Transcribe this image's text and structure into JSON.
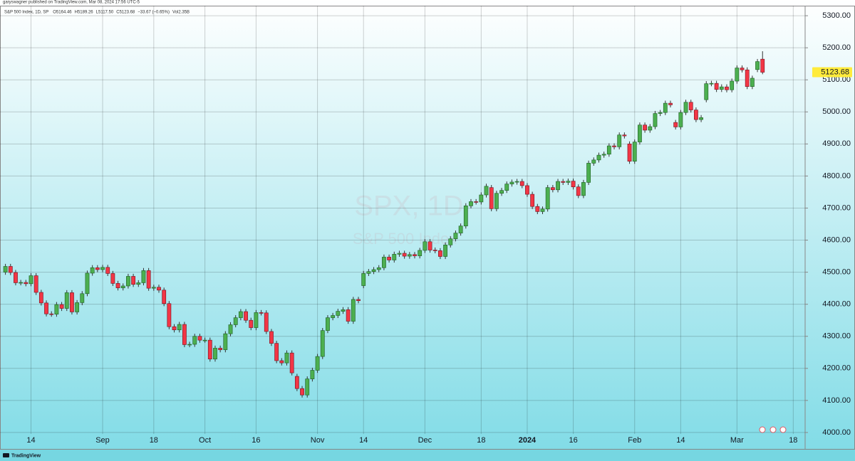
{
  "header": {
    "published": "garyswagner published on TradingView.com, Mar 08, 2024 17:56 UTC-5",
    "symbol": "S&P 500 Index, 1D, SP",
    "ohlc_items": [
      "O5164.46",
      "H5189.26",
      "L5117.50",
      "C5123.68",
      "−33.67 (−0.65%)",
      "Vol2.35B"
    ],
    "brand": "TradingView"
  },
  "chart_data": {
    "type": "candlestick",
    "watermark": "SPX, 1D",
    "watermark_subtitle": "S&P 500 Index",
    "up_color": "#4caf50",
    "down_color": "#f23645",
    "grid": true,
    "ylim": [
      3951,
      5349
    ],
    "yticks": [
      {
        "value": 4000,
        "label": "4000.00"
      },
      {
        "value": 4100,
        "label": "4100.00"
      },
      {
        "value": 4200,
        "label": "4200.00"
      },
      {
        "value": 4300,
        "label": "4300.00"
      },
      {
        "value": 4400,
        "label": "4400.00"
      },
      {
        "value": 4500,
        "label": "4500.00"
      },
      {
        "value": 4600,
        "label": "4600.00"
      },
      {
        "value": 4700,
        "label": "4700.00"
      },
      {
        "value": 4800,
        "label": "4800.00"
      },
      {
        "value": 4900,
        "label": "4900.00"
      },
      {
        "value": 5000,
        "label": "5000.00"
      },
      {
        "value": 5100,
        "label": "5100.00"
      },
      {
        "value": 5200,
        "label": "5200.00"
      },
      {
        "value": 5300,
        "label": "5300.00"
      }
    ],
    "xticks": [
      {
        "value": 5,
        "label": "14"
      },
      {
        "value": 19,
        "label": "Sep"
      },
      {
        "value": 29,
        "label": "18"
      },
      {
        "value": 39,
        "label": "Oct"
      },
      {
        "value": 49,
        "label": "16"
      },
      {
        "value": 61,
        "label": "Nov"
      },
      {
        "value": 70,
        "label": "14"
      },
      {
        "value": 82,
        "label": "Dec"
      },
      {
        "value": 93,
        "label": "18"
      },
      {
        "value": 102,
        "label": "2024"
      },
      {
        "value": 111,
        "label": "16"
      },
      {
        "value": 123,
        "label": "Feb"
      },
      {
        "value": 132,
        "label": "14"
      },
      {
        "value": 143,
        "label": "Mar"
      },
      {
        "value": 154,
        "label": "18"
      }
    ],
    "open": [
      4500,
      4518,
      4499,
      4467,
      4468,
      4464,
      4489,
      4437,
      4404,
      4370,
      4369,
      4399,
      4387,
      4436,
      4376,
      4405,
      4433,
      4497,
      4514,
      4508,
      4515,
      4496,
      4465,
      4451,
      4457,
      4487,
      4462,
      4467,
      4505,
      4450,
      4453,
      4444,
      4402,
      4330,
      4320,
      4337,
      4274,
      4275,
      4300,
      4288,
      4288,
      4229,
      4263,
      4258,
      4308,
      4336,
      4358,
      4377,
      4350,
      4327,
      4374,
      4373,
      4315,
      4278,
      4224,
      4217,
      4248,
      4175,
      4137,
      4117,
      4167,
      4194,
      4237,
      4318,
      4358,
      4365,
      4378,
      4383,
      4347,
      4415,
      4458,
      4496,
      4502,
      4508,
      4514,
      4547,
      4538,
      4556,
      4559,
      4550,
      4555,
      4551,
      4568,
      4595,
      4569,
      4567,
      4549,
      4585,
      4604,
      4622,
      4644,
      4707,
      4720,
      4719,
      4741,
      4764,
      4698,
      4746,
      4755,
      4775,
      4781,
      4783,
      4770,
      4743,
      4705,
      4689,
      4697,
      4764,
      4757,
      4783,
      4780,
      4784,
      4766,
      4739,
      4780,
      4840,
      4850,
      4865,
      4868,
      4894,
      4891,
      4928,
      4900,
      4846,
      4906,
      4959,
      4943,
      4954,
      4995,
      4998,
      5027,
      4967,
      4953,
      4998,
      5030,
      5006,
      4976,
      5038,
      5088,
      5089,
      5070,
      5078,
      5069,
      5096,
      5137,
      5131,
      5079,
      5132,
      5164.46
    ],
    "high": [
      4526,
      4526,
      4507,
      4476,
      4476,
      4497,
      4497,
      4445,
      4412,
      4378,
      4407,
      4407,
      4444,
      4444,
      4413,
      4441,
      4505,
      4522,
      4522,
      4523,
      4523,
      4504,
      4473,
      4465,
      4495,
      4495,
      4475,
      4513,
      4513,
      4461,
      4461,
      4452,
      4410,
      4338,
      4345,
      4345,
      4283,
      4308,
      4308,
      4296,
      4296,
      4271,
      4271,
      4316,
      4344,
      4366,
      4385,
      4385,
      4358,
      4382,
      4382,
      4381,
      4323,
      4286,
      4232,
      4256,
      4256,
      4183,
      4145,
      4175,
      4202,
      4245,
      4326,
      4366,
      4373,
      4386,
      4391,
      4391,
      4423,
      4423,
      4504,
      4510,
      4516,
      4522,
      4555,
      4555,
      4564,
      4567,
      4567,
      4563,
      4563,
      4576,
      4603,
      4603,
      4577,
      4575,
      4593,
      4612,
      4630,
      4652,
      4715,
      4728,
      4728,
      4749,
      4776,
      4772,
      4754,
      4763,
      4783,
      4789,
      4791,
      4791,
      4778,
      4751,
      4713,
      4705,
      4772,
      4772,
      4791,
      4791,
      4792,
      4792,
      4774,
      4788,
      4848,
      4858,
      4873,
      4876,
      4902,
      4902,
      4936,
      4936,
      4908,
      4914,
      4967,
      4967,
      4962,
      5003,
      5006,
      5035,
      5035,
      4975,
      5006,
      5038,
      5038,
      5014,
      4990,
      5096,
      5097,
      5097,
      5086,
      5086,
      5104,
      5145,
      5145,
      5139,
      5113,
      5165,
      5189.26
    ],
    "low": [
      4492,
      4491,
      4459,
      4459,
      4456,
      4456,
      4429,
      4396,
      4362,
      4361,
      4361,
      4379,
      4379,
      4368,
      4368,
      4397,
      4425,
      4489,
      4500,
      4500,
      4488,
      4457,
      4443,
      4443,
      4449,
      4454,
      4454,
      4459,
      4442,
      4442,
      4436,
      4394,
      4322,
      4312,
      4312,
      4266,
      4266,
      4267,
      4280,
      4280,
      4221,
      4221,
      4250,
      4250,
      4300,
      4328,
      4350,
      4342,
      4319,
      4319,
      4365,
      4307,
      4270,
      4216,
      4209,
      4209,
      4178,
      4129,
      4109,
      4109,
      4159,
      4186,
      4229,
      4310,
      4350,
      4357,
      4370,
      4339,
      4339,
      4403,
      4450,
      4488,
      4494,
      4500,
      4506,
      4530,
      4530,
      4548,
      4542,
      4542,
      4543,
      4543,
      4560,
      4561,
      4559,
      4541,
      4541,
      4577,
      4596,
      4614,
      4636,
      4699,
      4711,
      4711,
      4733,
      4690,
      4690,
      4738,
      4747,
      4767,
      4773,
      4762,
      4735,
      4697,
      4681,
      4681,
      4689,
      4749,
      4749,
      4772,
      4772,
      4758,
      4731,
      4731,
      4772,
      4832,
      4842,
      4857,
      4860,
      4883,
      4883,
      4917,
      4838,
      4838,
      4898,
      4935,
      4935,
      4946,
      4987,
      4990,
      5014,
      4945,
      4945,
      4990,
      4998,
      4968,
      4968,
      5030,
      5080,
      5062,
      5062,
      5061,
      5061,
      5088,
      5123,
      5071,
      5071,
      5124,
      5117.5
    ],
    "close": [
      4518,
      4499,
      4467,
      4468,
      4464,
      4489,
      4437,
      4404,
      4370,
      4369,
      4399,
      4387,
      4436,
      4376,
      4405,
      4433,
      4497,
      4514,
      4508,
      4515,
      4496,
      4465,
      4451,
      4457,
      4487,
      4462,
      4467,
      4505,
      4450,
      4453,
      4444,
      4402,
      4330,
      4320,
      4337,
      4274,
      4275,
      4300,
      4288,
      4288,
      4229,
      4263,
      4258,
      4308,
      4336,
      4358,
      4377,
      4350,
      4327,
      4374,
      4373,
      4315,
      4278,
      4224,
      4217,
      4248,
      4186,
      4137,
      4117,
      4167,
      4194,
      4237,
      4318,
      4358,
      4365,
      4378,
      4383,
      4347,
      4415,
      4411,
      4496,
      4502,
      4508,
      4514,
      4547,
      4538,
      4556,
      4559,
      4550,
      4555,
      4551,
      4568,
      4595,
      4569,
      4567,
      4549,
      4585,
      4604,
      4622,
      4644,
      4707,
      4720,
      4719,
      4741,
      4768,
      4698,
      4746,
      4755,
      4775,
      4781,
      4783,
      4770,
      4743,
      4705,
      4689,
      4697,
      4764,
      4757,
      4783,
      4780,
      4784,
      4766,
      4739,
      4780,
      4840,
      4850,
      4865,
      4868,
      4894,
      4891,
      4928,
      4925,
      4846,
      4906,
      4959,
      4943,
      4954,
      4995,
      4998,
      5027,
      5022,
      4953,
      4998,
      5030,
      5006,
      4976,
      4982,
      5088,
      5089,
      5070,
      5078,
      5069,
      5096,
      5137,
      5131,
      5079,
      5105,
      5157,
      5123.68
    ]
  }
}
